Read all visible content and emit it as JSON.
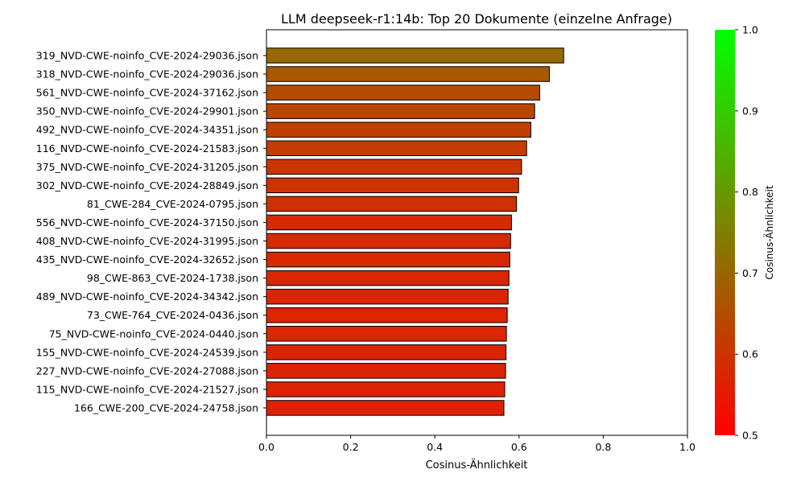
{
  "chart_data": {
    "type": "bar",
    "orientation": "horizontal",
    "title": "LLM deepseek-r1:14b: Top 20 Dokumente (einzelne Anfrage)",
    "xlabel": "Cosinus-Ähnlichkeit",
    "ylabel": "",
    "xlim": [
      0.0,
      1.0
    ],
    "xticks": [
      "0.0",
      "0.2",
      "0.4",
      "0.6",
      "0.8",
      "1.0"
    ],
    "grid": false,
    "categories": [
      "319_NVD-CWE-noinfo_CVE-2024-29036.json",
      "318_NVD-CWE-noinfo_CVE-2024-29036.json",
      "561_NVD-CWE-noinfo_CVE-2024-37162.json",
      "350_NVD-CWE-noinfo_CVE-2024-29901.json",
      "492_NVD-CWE-noinfo_CVE-2024-34351.json",
      "116_NVD-CWE-noinfo_CVE-2024-21583.json",
      "375_NVD-CWE-noinfo_CVE-2024-31205.json",
      "302_NVD-CWE-noinfo_CVE-2024-28849.json",
      "81_CWE-284_CVE-2024-0795.json",
      "556_NVD-CWE-noinfo_CVE-2024-37150.json",
      "408_NVD-CWE-noinfo_CVE-2024-31995.json",
      "435_NVD-CWE-noinfo_CVE-2024-32652.json",
      "98_CWE-863_CVE-2024-1738.json",
      "489_NVD-CWE-noinfo_CVE-2024-34342.json",
      "73_CWE-764_CVE-2024-0436.json",
      "75_NVD-CWE-noinfo_CVE-2024-0440.json",
      "155_NVD-CWE-noinfo_CVE-2024-24539.json",
      "227_NVD-CWE-noinfo_CVE-2024-27088.json",
      "115_NVD-CWE-noinfo_CVE-2024-21527.json",
      "166_CWE-200_CVE-2024-24758.json"
    ],
    "values": [
      0.706,
      0.672,
      0.649,
      0.637,
      0.628,
      0.618,
      0.606,
      0.599,
      0.594,
      0.582,
      0.58,
      0.578,
      0.576,
      0.574,
      0.572,
      0.57,
      0.569,
      0.568,
      0.566,
      0.564
    ],
    "colorbar": {
      "label": "Cosinus-Ähnlichkeit",
      "range": [
        0.5,
        1.0
      ],
      "ticks": [
        "0.5",
        "0.6",
        "0.7",
        "0.8",
        "0.9",
        "1.0"
      ],
      "color_low": "#ff0000",
      "color_high": "#00ff00"
    },
    "bar_edge_color": "#000000"
  }
}
